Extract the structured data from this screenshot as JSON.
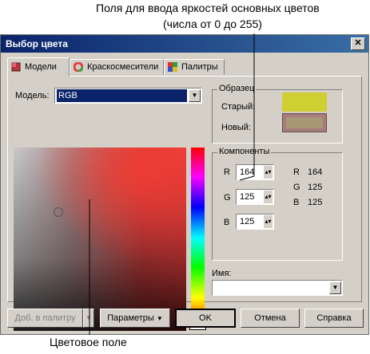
{
  "annotations": {
    "top_line1": "Поля для ввода яркостей основных цветов",
    "top_line2": "(числа от 0 до 255)",
    "bottom": "Цветовое поле"
  },
  "dialog": {
    "title": "Выбор цвета",
    "close_glyph": "✕",
    "tabs": [
      {
        "label": "Модели",
        "icon": "cube-icon"
      },
      {
        "label": "Краскосмесители",
        "icon": "color-wheel-icon"
      },
      {
        "label": "Палитры",
        "icon": "palette-grid-icon"
      }
    ],
    "model_label": "Модель:",
    "model_value": "RGB",
    "sample": {
      "title": "Образец",
      "old_label": "Старый:",
      "new_label": "Новый:",
      "old_color": "#cfcf32",
      "new_color": "#a47d7d"
    },
    "components": {
      "title": "Компоненты",
      "inputs": [
        {
          "label": "R",
          "value": "164"
        },
        {
          "label": "G",
          "value": "125"
        },
        {
          "label": "B",
          "value": "125"
        }
      ],
      "readout": [
        {
          "label": "R",
          "value": "164"
        },
        {
          "label": "G",
          "value": "125"
        },
        {
          "label": "B",
          "value": "125"
        }
      ]
    },
    "name_label": "Имя:",
    "name_value": "",
    "buttons": {
      "add_to_palette": "Доб. в палитру",
      "options": "Параметры",
      "ok": "OK",
      "cancel": "Отмена",
      "help": "Справка"
    }
  }
}
